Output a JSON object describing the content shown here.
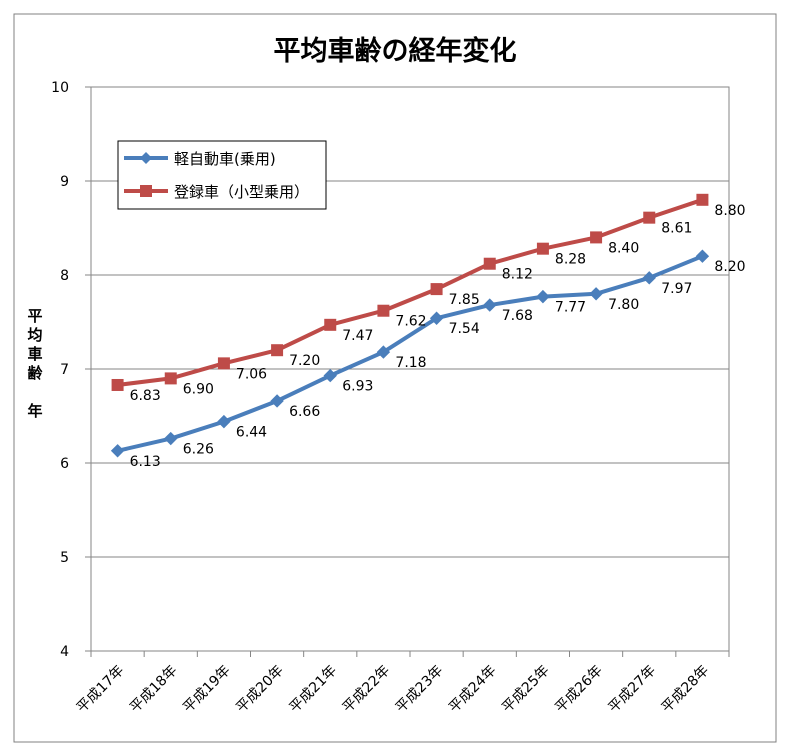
{
  "chart_data": {
    "type": "line",
    "title": "平均車齢の経年変化",
    "ylabel": "平均車齢 年",
    "ylabel_lines": [
      "平",
      "均",
      "車",
      "齢",
      "",
      "年"
    ],
    "xlabel": "",
    "categories": [
      "平成17年",
      "平成18年",
      "平成19年",
      "平成20年",
      "平成21年",
      "平成22年",
      "平成23年",
      "平成24年",
      "平成25年",
      "平成26年",
      "平成27年",
      "平成28年"
    ],
    "ylim": [
      4,
      10
    ],
    "yticks": [
      4,
      5,
      6,
      7,
      8,
      9,
      10
    ],
    "grid": true,
    "legend_position": "top-left",
    "series": [
      {
        "name": "軽自動車(乗用)",
        "color": "#4a7ebb",
        "marker": "diamond",
        "values": [
          6.13,
          6.26,
          6.44,
          6.66,
          6.93,
          7.18,
          7.54,
          7.68,
          7.77,
          7.8,
          7.97,
          8.2
        ],
        "labels": [
          "6.13",
          "6.26",
          "6.44",
          "6.66",
          "6.93",
          "7.18",
          "7.54",
          "7.68",
          "7.77",
          "7.80",
          "7.97",
          "8.20"
        ]
      },
      {
        "name": "登録車（小型乗用）",
        "color": "#be4b48",
        "marker": "square",
        "values": [
          6.83,
          6.9,
          7.06,
          7.2,
          7.47,
          7.62,
          7.85,
          8.12,
          8.28,
          8.4,
          8.61,
          8.8
        ],
        "labels": [
          "6.83",
          "6.90",
          "7.06",
          "7.20",
          "7.47",
          "7.62",
          "7.85",
          "8.12",
          "8.28",
          "8.40",
          "8.61",
          "8.80"
        ]
      }
    ]
  }
}
